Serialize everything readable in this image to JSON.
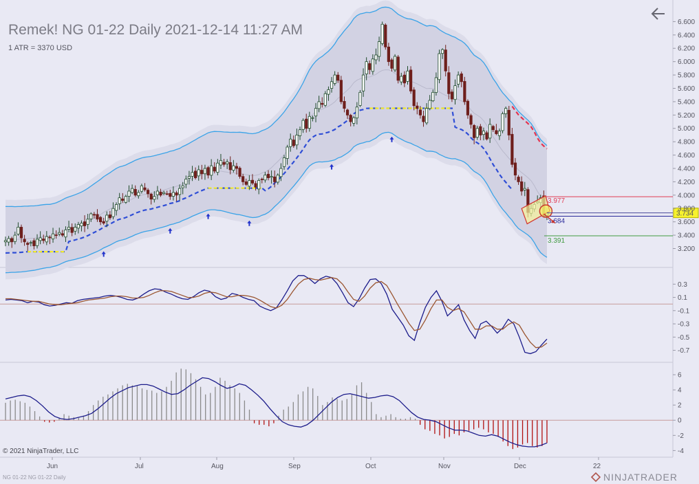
{
  "header": {
    "title": "Remek!  NG 01-22  Daily  2021-12-14 11:27 AM",
    "atr_label": "1 ATR = 3370 USD"
  },
  "footer": {
    "copyright": "© 2021 NinjaTrader, LLC",
    "instrument": "NG 01-22 NG 01-22 Daily",
    "brand": "NINJATRADER"
  },
  "icons": {
    "back": "arrow-left-icon",
    "logo": "ninjatrader-logo-icon"
  },
  "colors": {
    "up_candle": "#1f4a2a",
    "down_candle": "#6e1f1c",
    "band": "#3aa3e8",
    "trail_stop": "#2f4ed6",
    "trail_stop_down": "#e33350",
    "signal_yellow": "#f2ea2a",
    "osc_fast": "#1b1b8a",
    "osc_slow": "#9a5530",
    "hist_pos": "#8a8a8a",
    "hist_neg": "#b01010",
    "price_marker": "#f7f22e"
  },
  "chart_data": [
    {
      "type": "candlestick",
      "title": "Remek!  NG 01-22  Daily  2021-12-14 11:27 AM",
      "y_ticks": [
        "3.200",
        "3.400",
        "3.600",
        "3.800",
        "4.000",
        "4.200",
        "4.400",
        "4.600",
        "4.800",
        "5.000",
        "5.200",
        "5.400",
        "5.600",
        "5.800",
        "6.000",
        "6.200",
        "6.400",
        "6.600"
      ],
      "y_range": [
        3.03,
        6.8
      ],
      "x_ticks": [
        "Jun",
        "Jul",
        "Aug",
        "Sep",
        "Oct",
        "Nov",
        "Dec",
        "22"
      ],
      "last_price": "3.734",
      "levels": [
        {
          "label": "3.977",
          "value": 3.977,
          "color": "#e23a52"
        },
        {
          "label": "3.684",
          "value": 3.684,
          "color": "#2a2a9a"
        },
        {
          "label": "3.391",
          "value": 3.391,
          "color": "#3f9a3f"
        }
      ],
      "closes": [
        3.32,
        3.35,
        3.3,
        3.4,
        3.52,
        3.36,
        3.3,
        3.26,
        3.29,
        3.24,
        3.34,
        3.36,
        3.32,
        3.38,
        3.36,
        3.42,
        3.4,
        3.44,
        3.4,
        3.48,
        3.52,
        3.44,
        3.52,
        3.56,
        3.58,
        3.54,
        3.64,
        3.72,
        3.7,
        3.64,
        3.6,
        3.58,
        3.7,
        3.66,
        3.8,
        3.86,
        3.96,
        3.92,
        3.98,
        4.06,
        4.1,
        4.0,
        4.04,
        4.14,
        4.08,
        4.02,
        3.94,
        3.98,
        4.06,
        4.0,
        4.04,
        4.02,
        3.98,
        4.04,
        4.0,
        4.1,
        4.14,
        4.24,
        4.28,
        4.34,
        4.26,
        4.38,
        4.32,
        4.4,
        4.3,
        4.44,
        4.36,
        4.48,
        4.52,
        4.46,
        4.5,
        4.38,
        4.44,
        4.4,
        4.28,
        4.2,
        4.16,
        4.22,
        4.18,
        4.12,
        4.22,
        4.24,
        4.3,
        4.26,
        4.28,
        4.2,
        4.3,
        4.4,
        4.56,
        4.72,
        4.84,
        4.74,
        4.9,
        4.98,
        5.12,
        5.0,
        5.18,
        5.16,
        5.3,
        5.4,
        5.36,
        5.52,
        5.58,
        5.7,
        5.8,
        5.72,
        5.4,
        5.3,
        5.2,
        5.1,
        5.16,
        5.32,
        5.54,
        5.8,
        6.0,
        5.88,
        6.04,
        6.1,
        6.3,
        6.56,
        6.22,
        6.0,
        5.9,
        6.08,
        5.72,
        5.78,
        5.68,
        5.86,
        5.56,
        5.34,
        5.3,
        5.2,
        5.1,
        5.3,
        5.42,
        5.54,
        5.76,
        6.12,
        6.18,
        5.86,
        5.52,
        5.44,
        5.64,
        5.8,
        5.7,
        5.4,
        5.2,
        5.06,
        4.86,
        5.0,
        4.9,
        4.96,
        4.84,
        5.06,
        4.98,
        4.92,
        4.96,
        5.22,
        5.3,
        4.9,
        4.46,
        4.3,
        4.2,
        4.06,
        4.1,
        3.74,
        3.8,
        3.86,
        3.9,
        3.96,
        3.7,
        3.734
      ],
      "series": [
        {
          "name": "upper_band"
        },
        {
          "name": "lower_band"
        },
        {
          "name": "trailing_stop"
        }
      ]
    },
    {
      "type": "line",
      "y_ticks": [
        "0.3",
        "0.1",
        "-0.1",
        "-0.3",
        "-0.5",
        "-0.7"
      ],
      "y_range": [
        -0.85,
        0.48
      ],
      "zero_line": 0,
      "series": [
        {
          "name": "fast",
          "values": [
            0.06,
            0.07,
            0.06,
            0.05,
            0.02,
            0.04,
            0.03,
            -0.01,
            -0.03,
            -0.02,
            0.0,
            0.02,
            0.01,
            0.05,
            0.07,
            0.08,
            0.09,
            0.1,
            0.12,
            0.13,
            0.12,
            0.1,
            0.07,
            0.06,
            0.09,
            0.15,
            0.2,
            0.23,
            0.22,
            0.18,
            0.15,
            0.11,
            0.08,
            0.07,
            0.11,
            0.17,
            0.21,
            0.19,
            0.11,
            0.07,
            0.09,
            0.16,
            0.14,
            0.1,
            0.07,
            0.05,
            -0.03,
            -0.07,
            -0.1,
            -0.06,
            0.06,
            0.2,
            0.35,
            0.43,
            0.43,
            0.38,
            0.31,
            0.38,
            0.42,
            0.4,
            0.31,
            0.17,
            0.02,
            -0.04,
            0.08,
            0.24,
            0.37,
            0.38,
            0.31,
            0.15,
            -0.08,
            -0.2,
            -0.32,
            -0.48,
            -0.55,
            -0.28,
            -0.05,
            0.1,
            0.2,
            0.04,
            -0.18,
            -0.1,
            -0.01,
            -0.24,
            -0.4,
            -0.52,
            -0.3,
            -0.26,
            -0.34,
            -0.44,
            -0.36,
            -0.23,
            -0.3,
            -0.5,
            -0.73,
            -0.75,
            -0.72,
            -0.62,
            -0.53
          ]
        },
        {
          "name": "slow",
          "values": [
            0.08,
            0.08,
            0.07,
            0.06,
            0.05,
            0.04,
            0.04,
            0.02,
            0.0,
            -0.01,
            -0.01,
            0.0,
            0.01,
            0.02,
            0.04,
            0.06,
            0.07,
            0.08,
            0.09,
            0.11,
            0.12,
            0.12,
            0.11,
            0.09,
            0.09,
            0.1,
            0.13,
            0.17,
            0.2,
            0.2,
            0.19,
            0.16,
            0.13,
            0.1,
            0.1,
            0.12,
            0.16,
            0.18,
            0.17,
            0.14,
            0.11,
            0.11,
            0.13,
            0.13,
            0.12,
            0.1,
            0.06,
            0.01,
            -0.04,
            -0.06,
            -0.02,
            0.07,
            0.19,
            0.3,
            0.37,
            0.39,
            0.37,
            0.36,
            0.38,
            0.4,
            0.38,
            0.3,
            0.18,
            0.07,
            0.04,
            0.12,
            0.24,
            0.32,
            0.34,
            0.28,
            0.14,
            -0.01,
            -0.15,
            -0.29,
            -0.4,
            -0.38,
            -0.24,
            -0.07,
            0.06,
            0.06,
            -0.05,
            -0.1,
            -0.07,
            -0.12,
            -0.25,
            -0.38,
            -0.38,
            -0.33,
            -0.33,
            -0.38,
            -0.38,
            -0.31,
            -0.27,
            -0.32,
            -0.46,
            -0.58,
            -0.66,
            -0.65,
            -0.59
          ]
        }
      ]
    },
    {
      "type": "bar",
      "y_ticks": [
        "6",
        "4",
        "2",
        "0",
        "-2",
        "-4"
      ],
      "y_range": [
        -4.6,
        7.0
      ],
      "zero_line": 0,
      "series": [
        {
          "name": "histogram",
          "values": [
            2.3,
            2.6,
            2.7,
            2.5,
            2.3,
            1.8,
            1.2,
            0.5,
            -0.2,
            -0.3,
            -0.2,
            0.3,
            0.8,
            0.6,
            0.4,
            0.3,
            0.6,
            1.2,
            2.0,
            2.6,
            3.1,
            3.4,
            3.8,
            4.2,
            4.6,
            4.8,
            4.6,
            4.5,
            4.2,
            4.0,
            3.9,
            3.6,
            3.8,
            4.4,
            5.2,
            6.3,
            6.8,
            6.7,
            6.2,
            5.4,
            4.4,
            3.4,
            3.6,
            4.4,
            5.6,
            5.2,
            4.6,
            4.2,
            3.6,
            2.6,
            1.4,
            -0.4,
            -0.6,
            -0.6,
            -0.8,
            -0.4,
            0.6,
            1.4,
            1.8,
            2.4,
            3.4,
            3.8,
            4.4,
            4.2,
            3.2,
            2.0,
            2.4,
            3.0,
            2.8,
            2.6,
            2.8,
            3.4,
            4.6,
            5.0,
            3.6,
            2.4,
            0.8,
            0.4,
            0.6,
            0.8,
            0.4,
            0.2,
            0.2,
            0.4,
            0.2,
            -0.6,
            -1.2,
            -1.4,
            -1.8,
            -2.0,
            -2.4,
            -2.2,
            -1.8,
            -2.0,
            -1.6,
            -1.4,
            -1.2,
            -1.0,
            -1.2,
            -1.6,
            -1.8,
            -2.2,
            -2.8,
            -3.4,
            -3.8,
            -3.6,
            -3.2,
            -3.0,
            -3.4,
            -3.6,
            -3.4,
            -3.0
          ]
        },
        {
          "name": "signal",
          "values": [
            2.8,
            3.0,
            3.2,
            3.3,
            3.1,
            2.6,
            1.9,
            1.1,
            0.5,
            0.2,
            0.1,
            0.2,
            0.4,
            0.6,
            0.9,
            1.5,
            2.2,
            2.9,
            3.5,
            3.9,
            4.3,
            4.5,
            4.7,
            4.7,
            4.5,
            4.1,
            3.7,
            3.4,
            3.5,
            4.0,
            4.6,
            5.1,
            5.6,
            5.5,
            5.1,
            4.6,
            4.2,
            4.4,
            4.8,
            4.6,
            4.0,
            3.3,
            2.5,
            1.5,
            0.6,
            -0.2,
            -0.6,
            -0.8,
            -0.9,
            -0.6,
            0.0,
            0.8,
            1.6,
            2.4,
            3.0,
            3.4,
            3.5,
            3.3,
            3.1,
            2.9,
            3.0,
            3.2,
            3.3,
            3.1,
            2.6,
            1.8,
            1.0,
            0.4,
            0.1,
            0.0,
            -0.2,
            -0.6,
            -1.0,
            -1.3,
            -1.3,
            -1.4,
            -1.7,
            -2.0,
            -2.1,
            -1.9,
            -2.1,
            -2.5,
            -2.9,
            -3.2,
            -3.4,
            -3.5,
            -3.5,
            -3.3,
            -3.0
          ]
        }
      ]
    }
  ]
}
